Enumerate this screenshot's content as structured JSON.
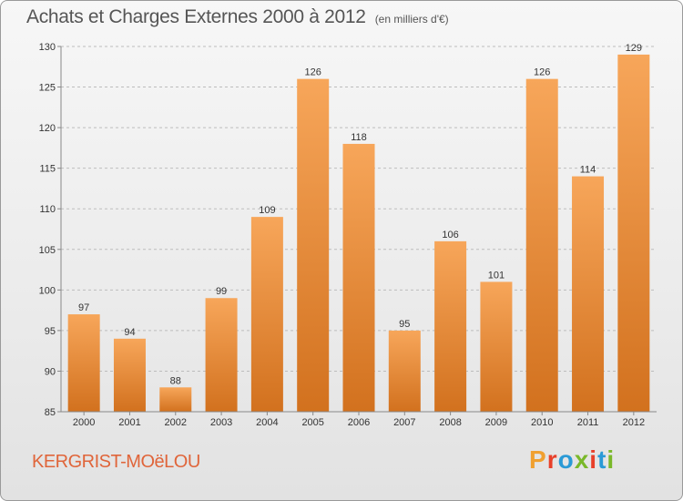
{
  "header": {
    "title": "Achats et Charges Externes 2000 à 2012",
    "subtitle": "(en milliers d'€)"
  },
  "footer": {
    "commune": "KERGRIST-MOëLOU",
    "logo_text": "Proxiti",
    "logo_colors": [
      "#f0a030",
      "#e8402a",
      "#2a9ad6",
      "#7ab82a",
      "#e8402a",
      "#2a9ad6",
      "#7ab82a"
    ]
  },
  "colors": {
    "bar_light": "#f7a65a",
    "bar_dark": "#d2711e",
    "axis_text": "#333333",
    "grid": "#bdbdbd",
    "commune_text": "#e0653a"
  },
  "chart_data": {
    "type": "bar",
    "title": "Achats et Charges Externes 2000 à 2012",
    "subtitle": "(en milliers d'€)",
    "xlabel": "",
    "ylabel": "",
    "categories": [
      "2000",
      "2001",
      "2002",
      "2003",
      "2004",
      "2005",
      "2006",
      "2007",
      "2008",
      "2009",
      "2010",
      "2011",
      "2012"
    ],
    "values": [
      97,
      94,
      88,
      99,
      109,
      126,
      118,
      95,
      106,
      101,
      126,
      114,
      129
    ],
    "ylim": [
      85,
      130
    ],
    "yticks": [
      85,
      90,
      95,
      100,
      105,
      110,
      115,
      120,
      125,
      130
    ],
    "grid": true,
    "data_labels": true,
    "legend": "none"
  }
}
